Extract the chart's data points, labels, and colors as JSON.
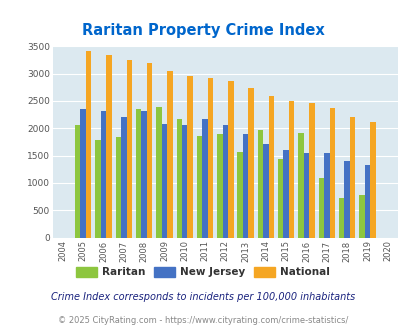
{
  "title": "Raritan Property Crime Index",
  "years": [
    2004,
    2005,
    2006,
    2007,
    2008,
    2009,
    2010,
    2011,
    2012,
    2013,
    2014,
    2015,
    2016,
    2017,
    2018,
    2019,
    2020
  ],
  "raritan": [
    0,
    2050,
    1790,
    1840,
    2360,
    2380,
    2170,
    1850,
    1900,
    1570,
    1960,
    1430,
    1920,
    1090,
    720,
    780,
    0
  ],
  "new_jersey": [
    0,
    2360,
    2310,
    2200,
    2310,
    2070,
    2060,
    2160,
    2050,
    1900,
    1720,
    1610,
    1550,
    1550,
    1400,
    1320,
    0
  ],
  "national": [
    0,
    3410,
    3340,
    3250,
    3200,
    3050,
    2960,
    2910,
    2860,
    2730,
    2590,
    2490,
    2470,
    2370,
    2200,
    2120,
    0
  ],
  "bar_width": 0.27,
  "raritan_color": "#8dc63f",
  "nj_color": "#4472c4",
  "national_color": "#f5a623",
  "bg_color": "#dce9f0",
  "title_color": "#0066cc",
  "ylabel_max": 3500,
  "yticks": [
    0,
    500,
    1000,
    1500,
    2000,
    2500,
    3000,
    3500
  ],
  "footnote1": "Crime Index corresponds to incidents per 100,000 inhabitants",
  "footnote2": "© 2025 CityRating.com - https://www.cityrating.com/crime-statistics/",
  "legend_labels": [
    "Raritan",
    "New Jersey",
    "National"
  ],
  "grid_color": "#ffffff",
  "legend_text_color": "#333333",
  "footnote1_color": "#1a237e",
  "footnote2_color": "#888888"
}
